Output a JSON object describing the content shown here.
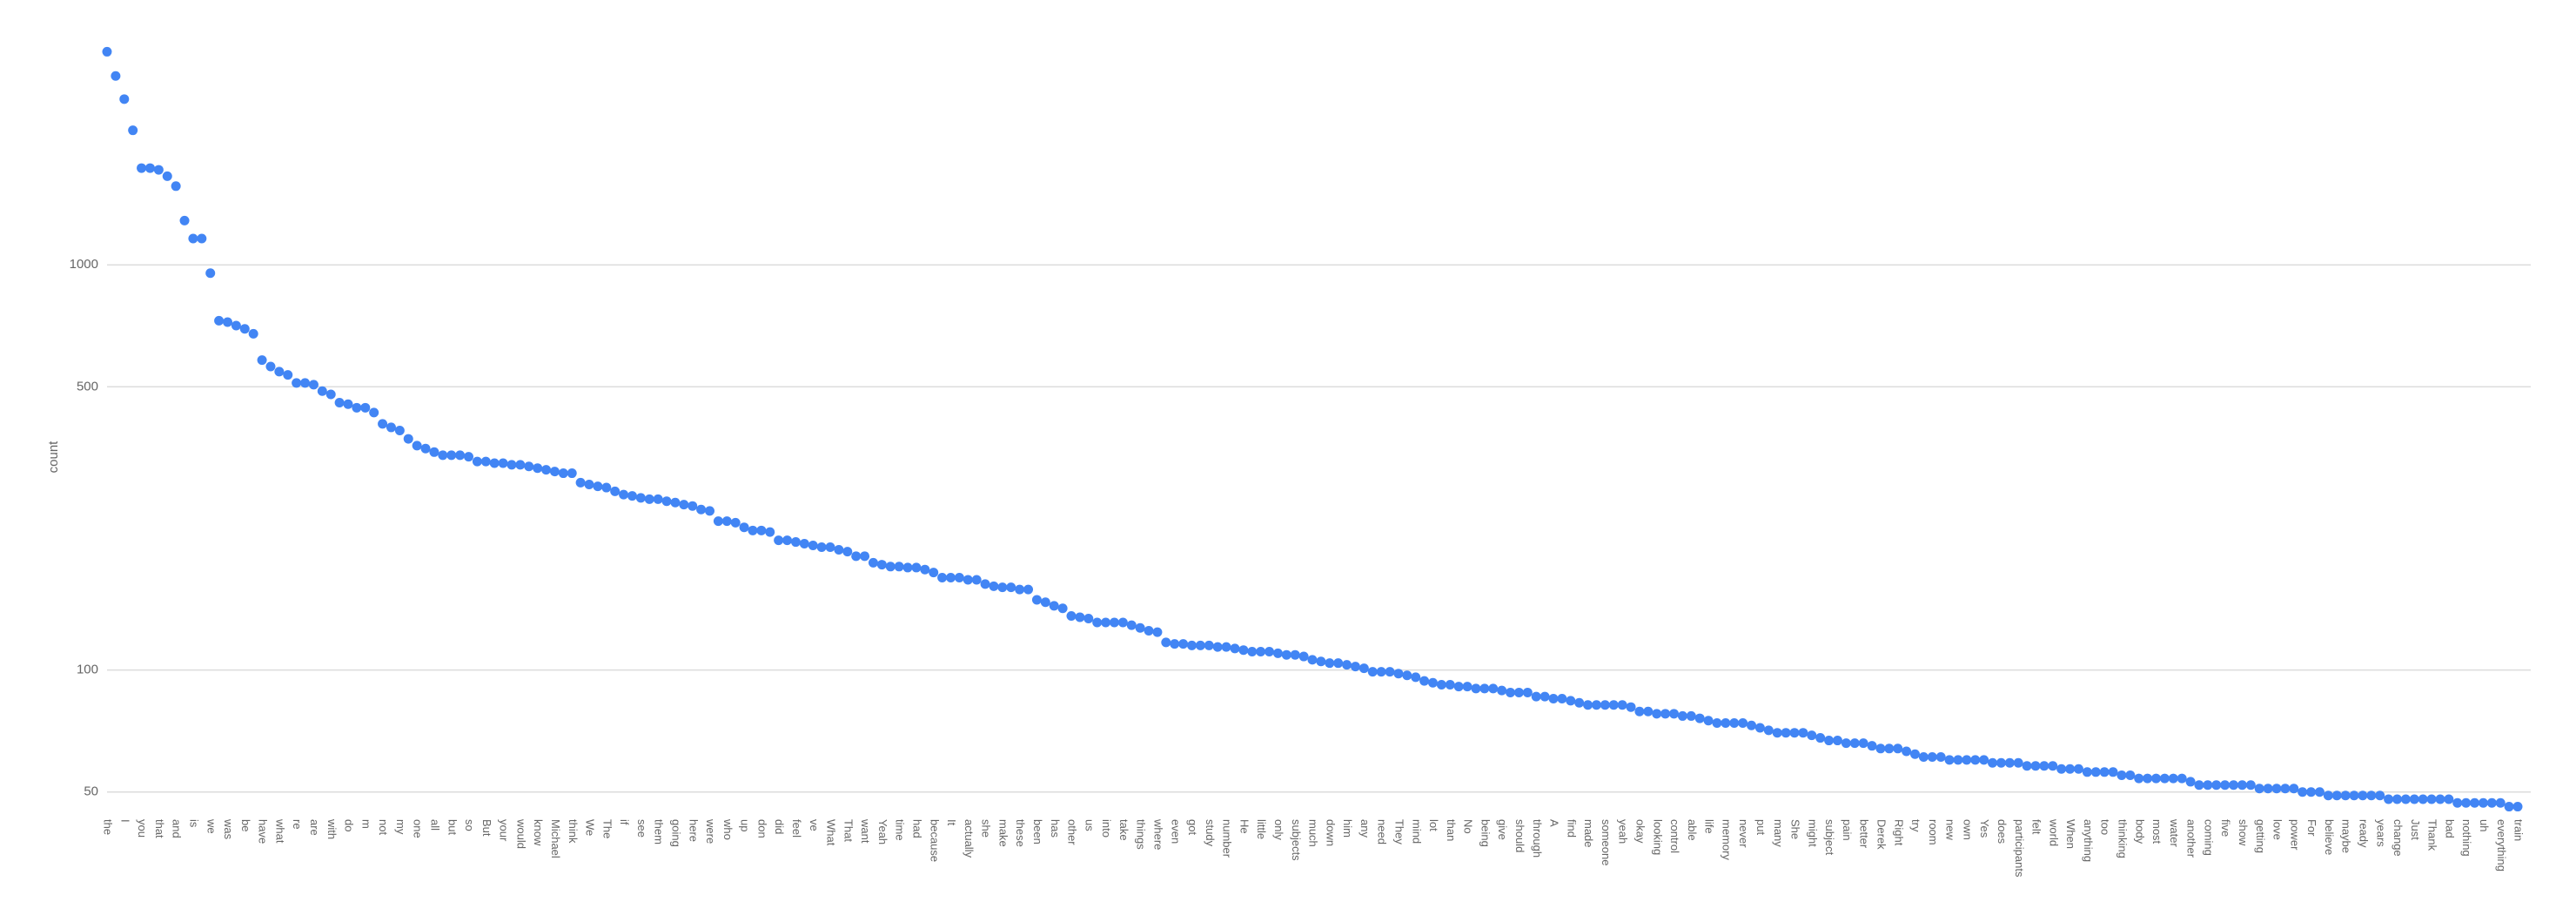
{
  "chart_data": {
    "type": "scatter",
    "y_label": "count",
    "log_scale": true,
    "grid": true,
    "color": "#4285f4",
    "ylim": [
      45,
      3500
    ],
    "yticks": [
      50,
      100,
      500,
      1000
    ],
    "categories": [
      "the",
      null,
      "I",
      null,
      "you",
      null,
      "that",
      null,
      "and",
      null,
      "is",
      null,
      "we",
      null,
      "was",
      null,
      "be",
      null,
      "have",
      null,
      "what",
      null,
      "re",
      null,
      "are",
      null,
      "with",
      null,
      "do",
      null,
      "m",
      null,
      "not",
      null,
      "my",
      null,
      "one",
      null,
      "all",
      null,
      "but",
      null,
      "so",
      null,
      "But",
      null,
      "your",
      null,
      "would",
      null,
      "know",
      null,
      "Michael",
      null,
      "think",
      null,
      "We",
      null,
      "The",
      null,
      "if",
      null,
      "see",
      null,
      "them",
      null,
      "going",
      null,
      "here",
      null,
      "were",
      null,
      "who",
      null,
      "up",
      null,
      "don",
      null,
      "did",
      null,
      "feel",
      null,
      "ve",
      null,
      "What",
      null,
      "That",
      null,
      "want",
      null,
      "Yeah",
      null,
      "time",
      null,
      "had",
      null,
      "because",
      null,
      "It",
      null,
      "actually",
      null,
      "she",
      null,
      "make",
      null,
      "these",
      null,
      "been",
      null,
      "has",
      null,
      "other",
      null,
      "us",
      null,
      "into",
      null,
      "take",
      null,
      "things",
      null,
      "where",
      null,
      "even",
      null,
      "got",
      null,
      "study",
      null,
      "number",
      null,
      "He",
      null,
      "little",
      null,
      "only",
      null,
      "subjects",
      null,
      "much",
      null,
      "down",
      null,
      "him",
      null,
      "any",
      null,
      "need",
      null,
      "They",
      null,
      "mind",
      null,
      "lot",
      null,
      "than",
      null,
      "No",
      null,
      "being",
      null,
      "give",
      null,
      "should",
      null,
      "through",
      null,
      "A",
      null,
      "find",
      null,
      "made",
      null,
      "someone",
      null,
      "yeah",
      null,
      "okay",
      null,
      "looking",
      null,
      "control",
      null,
      "able",
      null,
      "life",
      null,
      "memory",
      null,
      "never",
      null,
      "put",
      null,
      "many",
      null,
      "She",
      null,
      "might",
      null,
      "subject",
      null,
      "pain",
      null,
      "better",
      null,
      "Derek",
      null,
      "Right",
      null,
      "try",
      null,
      "room",
      null,
      "new",
      null,
      "own",
      null,
      "Yes",
      null,
      "does",
      null,
      "participants",
      null,
      "felt",
      null,
      "world",
      null,
      "When",
      null,
      "anything",
      null,
      "too",
      null,
      "thinking",
      null,
      "body",
      null,
      "most",
      null,
      "water",
      null,
      "another",
      null,
      "coming",
      null,
      "five",
      null,
      "show",
      null,
      "getting",
      null,
      "love",
      null,
      "power",
      null,
      "For",
      null,
      "believe",
      null,
      "maybe",
      null,
      "ready",
      null,
      "years",
      null,
      "change",
      null,
      "Just",
      null,
      "Thank",
      null,
      "bad",
      null,
      "nothing",
      null,
      "uh",
      null,
      "everything",
      null,
      "train"
    ],
    "values": [
      3357,
      2925,
      2565,
      2148,
      1733,
      1733,
      1716,
      1655,
      1564,
      1286,
      1161,
      1161,
      954,
      728,
      722,
      708,
      695,
      676,
      582,
      561,
      545,
      535,
      511,
      511,
      506,
      488,
      479,
      457,
      453,
      444,
      444,
      432,
      405,
      397,
      390,
      372,
      358,
      352,
      345,
      339,
      339,
      339,
      336,
      327,
      327,
      324,
      324,
      321,
      321,
      318,
      315,
      312,
      309,
      306,
      306,
      290,
      287,
      284,
      282,
      276,
      271,
      269,
      266,
      264,
      264,
      261,
      259,
      256,
      254,
      249,
      247,
      233,
      233,
      231,
      225,
      221,
      221,
      219,
      209,
      209,
      207,
      205,
      203,
      201,
      201,
      198,
      196,
      191,
      191,
      184,
      182,
      180,
      180,
      179,
      179,
      177,
      174,
      169,
      169,
      169,
      167,
      167,
      163,
      161,
      160,
      160,
      158,
      158,
      149,
      147,
      144,
      142,
      136,
      135,
      134,
      131,
      131,
      131,
      131,
      129,
      127,
      125,
      124,
      117,
      116,
      116,
      115,
      115,
      115,
      114,
      114,
      113,
      112,
      111,
      111,
      111,
      110,
      109,
      109,
      108,
      106,
      105,
      104,
      104,
      103,
      102,
      101,
      99,
      99,
      99,
      98,
      97,
      96,
      94,
      93,
      92,
      92,
      91,
      91,
      90,
      90,
      90,
      89,
      88,
      88,
      88,
      86,
      86,
      85,
      85,
      84,
      83,
      82,
      82,
      82,
      82,
      82,
      81,
      79,
      79,
      78,
      78,
      78,
      77,
      77,
      76,
      75,
      74,
      74,
      74,
      74,
      73,
      72,
      71,
      70,
      70,
      70,
      70,
      69,
      68,
      67,
      67,
      66,
      66,
      66,
      65,
      64,
      64,
      64,
      63,
      62,
      61,
      61,
      61,
      60,
      60,
      60,
      60,
      60,
      59,
      59,
      59,
      59,
      58,
      58,
      58,
      58,
      57,
      57,
      57,
      56,
      56,
      56,
      56,
      55,
      55,
      54,
      54,
      54,
      54,
      54,
      54,
      53,
      52,
      52,
      52,
      52,
      52,
      52,
      52,
      51,
      51,
      51,
      51,
      51,
      50,
      50,
      50,
      49,
      49,
      49,
      49,
      49,
      49,
      49,
      48,
      48,
      48,
      48,
      48,
      48,
      48,
      48,
      47,
      47,
      47,
      47,
      47,
      47,
      46,
      46
    ]
  }
}
